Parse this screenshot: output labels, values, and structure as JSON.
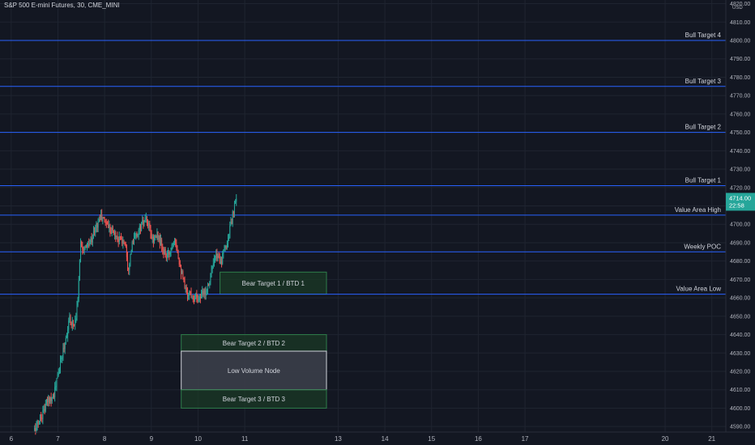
{
  "header": {
    "symbol_title": "S&P 500 E-mini Futures, 30, CME_MINI",
    "currency": "USD"
  },
  "colors": {
    "background": "#131722",
    "grid": "#1f2430",
    "up_candle": "#26a69a",
    "down_candle": "#ef5350",
    "level_line": "#2962ff",
    "zone_fill": "#1b3a26",
    "zone_border": "#2e7d4a",
    "lvn_fill": "#3b3e49",
    "lvn_border": "#cfd2da",
    "price_badge": "#26a69a",
    "text": "#d1d4dc",
    "axis_text": "#b2b5be"
  },
  "chart_data": {
    "type": "candlestick",
    "title": "S&P 500 E-mini Futures, 30, CME_MINI",
    "xlabel": "",
    "ylabel": "",
    "ylim": [
      4587,
      4822
    ],
    "xlim": [
      5.76,
      21.3
    ],
    "grid": true,
    "y_ticks": [
      4590,
      4600,
      4610,
      4620,
      4630,
      4640,
      4650,
      4660,
      4670,
      4680,
      4690,
      4700,
      4710,
      4720,
      4730,
      4740,
      4750,
      4760,
      4770,
      4780,
      4790,
      4800,
      4810,
      4820
    ],
    "x_ticks": [
      {
        "x": 6,
        "label": "6"
      },
      {
        "x": 7,
        "label": "7"
      },
      {
        "x": 8,
        "label": "8"
      },
      {
        "x": 9,
        "label": "9"
      },
      {
        "x": 10,
        "label": "10"
      },
      {
        "x": 11,
        "label": "11"
      },
      {
        "x": 13,
        "label": "13"
      },
      {
        "x": 14,
        "label": "14"
      },
      {
        "x": 15,
        "label": "15"
      },
      {
        "x": 16,
        "label": "16"
      },
      {
        "x": 17,
        "label": "17"
      },
      {
        "x": 20,
        "label": "20"
      },
      {
        "x": 21,
        "label": "21"
      }
    ],
    "last_price": {
      "value": 4714.0,
      "label": "4714.00",
      "timer": "22:58"
    },
    "levels": [
      {
        "name": "Bull Target 4",
        "value": 4800
      },
      {
        "name": "Bull Target 3",
        "value": 4775
      },
      {
        "name": "Bull Target 2",
        "value": 4750
      },
      {
        "name": "Bull Target 1",
        "value": 4721
      },
      {
        "name": "Value Area High",
        "value": 4705
      },
      {
        "name": "Weekly POC",
        "value": 4685
      },
      {
        "name": "Value Area Low",
        "value": 4662
      }
    ],
    "zones": [
      {
        "label": "Bear Target 1 / BTD 1",
        "x_start": 10.47,
        "x_end": 12.75,
        "y_low": 4662,
        "y_high": 4674,
        "kind": "target"
      },
      {
        "label": "Bear Target 2 / BTD 2",
        "x_start": 9.64,
        "x_end": 12.75,
        "y_low": 4631,
        "y_high": 4640,
        "kind": "target"
      },
      {
        "label": "Low Volume Node",
        "x_start": 9.64,
        "x_end": 12.75,
        "y_low": 4610,
        "y_high": 4631,
        "kind": "lvn"
      },
      {
        "label": "Bear Target 3 / BTD 3",
        "x_start": 9.64,
        "x_end": 12.75,
        "y_low": 4600,
        "y_high": 4610,
        "kind": "target"
      }
    ],
    "candle_count": 220,
    "price_path": [
      [
        6.5,
        4588
      ],
      [
        6.62,
        4594
      ],
      [
        6.78,
        4604
      ],
      [
        6.92,
        4608
      ],
      [
        7.0,
        4618
      ],
      [
        7.1,
        4630
      ],
      [
        7.25,
        4648
      ],
      [
        7.35,
        4646
      ],
      [
        7.42,
        4656
      ],
      [
        7.48,
        4690
      ],
      [
        7.6,
        4686
      ],
      [
        7.75,
        4694
      ],
      [
        7.9,
        4704
      ],
      [
        8.0,
        4702
      ],
      [
        8.12,
        4698
      ],
      [
        8.3,
        4692
      ],
      [
        8.45,
        4690
      ],
      [
        8.5,
        4676
      ],
      [
        8.6,
        4690
      ],
      [
        8.8,
        4700
      ],
      [
        8.9,
        4702
      ],
      [
        9.02,
        4692
      ],
      [
        9.15,
        4694
      ],
      [
        9.25,
        4685
      ],
      [
        9.35,
        4682
      ],
      [
        9.5,
        4694
      ],
      [
        9.6,
        4680
      ],
      [
        9.72,
        4664
      ],
      [
        9.85,
        4662
      ],
      [
        10.05,
        4660
      ],
      [
        10.2,
        4666
      ],
      [
        10.3,
        4676
      ],
      [
        10.4,
        4683
      ],
      [
        10.5,
        4680
      ],
      [
        10.62,
        4690
      ],
      [
        10.72,
        4702
      ],
      [
        10.82,
        4714
      ]
    ]
  }
}
